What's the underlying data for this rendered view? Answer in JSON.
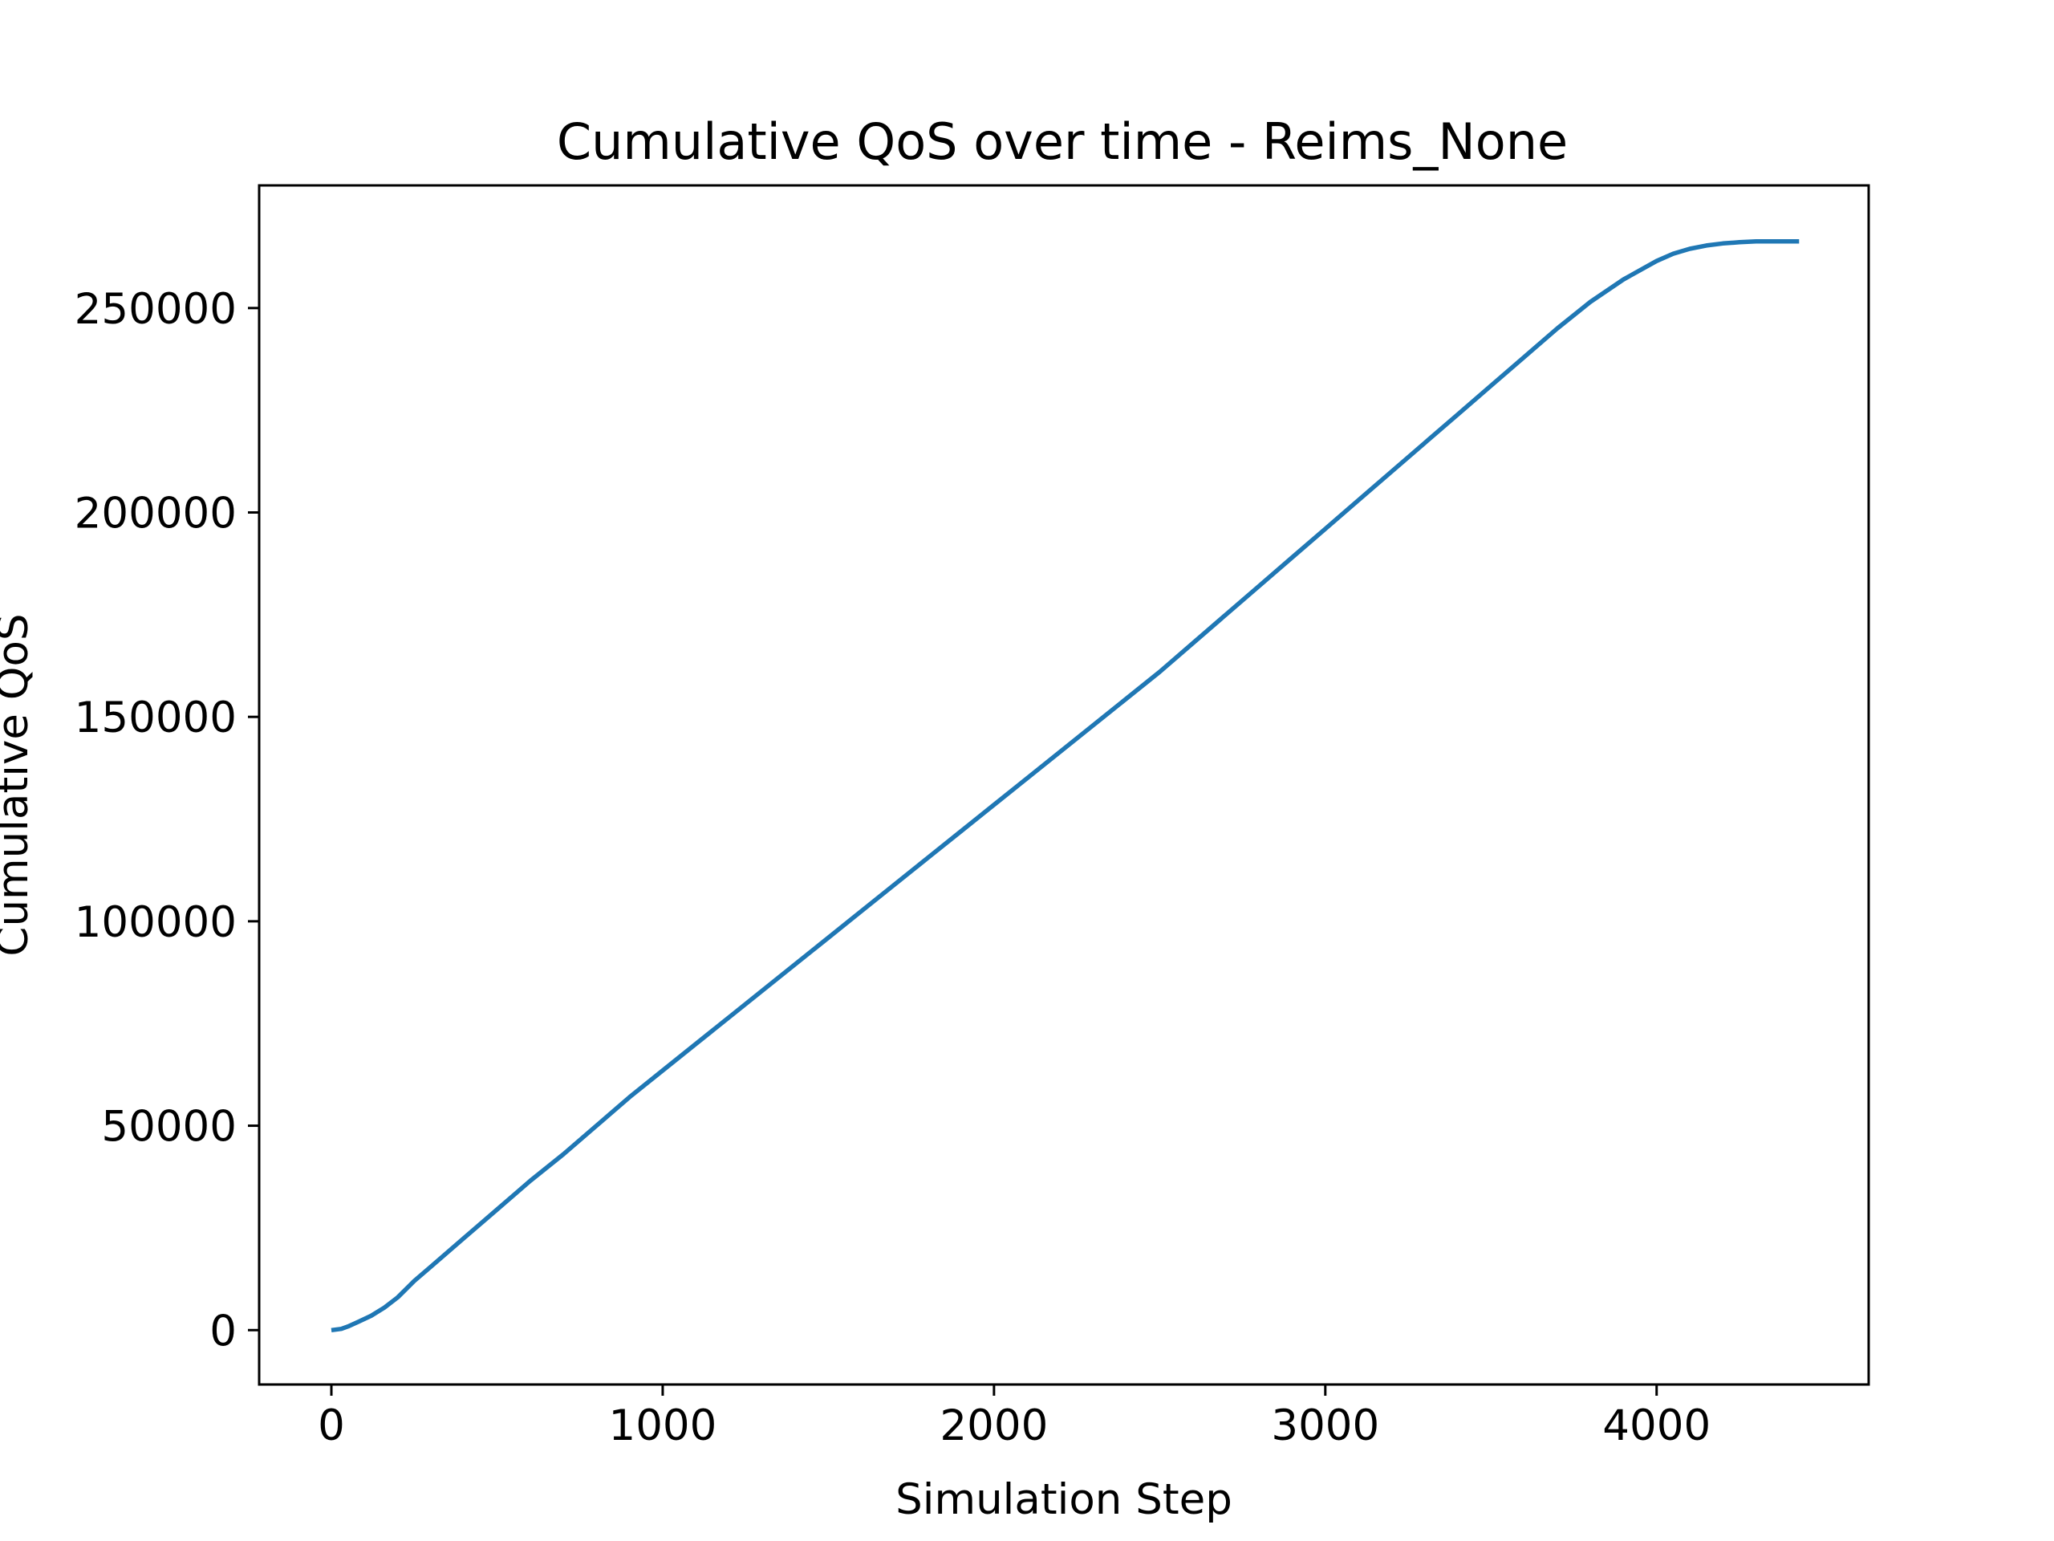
{
  "chart_data": {
    "type": "line",
    "title": "Cumulative QoS over time - Reims_None",
    "xlabel": "Simulation Step",
    "ylabel": "Cumulative QoS",
    "xlim": [
      -218,
      4640
    ],
    "ylim": [
      -13300,
      280000
    ],
    "xticks": [
      0,
      1000,
      2000,
      3000,
      4000
    ],
    "yticks": [
      0,
      50000,
      100000,
      150000,
      200000,
      250000
    ],
    "xtick_labels": [
      "0",
      "1000",
      "2000",
      "3000",
      "4000"
    ],
    "ytick_labels": [
      "0",
      "50000",
      "100000",
      "150000",
      "200000",
      "250000"
    ],
    "grid": false,
    "legend": "none",
    "series_color": "#1f77b4",
    "series": [
      {
        "x": [
          0,
          30,
          50,
          80,
          120,
          160,
          200,
          250,
          300,
          400,
          500,
          600,
          700,
          800,
          900,
          1000,
          1100,
          1200,
          1300,
          1400,
          1500,
          1600,
          1700,
          1800,
          1900,
          2000,
          2100,
          2200,
          2300,
          2400,
          2500,
          2600,
          2700,
          2800,
          2900,
          3000,
          3100,
          3200,
          3300,
          3400,
          3500,
          3600,
          3700,
          3800,
          3900,
          4000,
          4050,
          4100,
          4150,
          4200,
          4250,
          4300,
          4350,
          4430
        ],
        "y": [
          0,
          300,
          900,
          2000,
          3500,
          5500,
          8000,
          12000,
          15500,
          22500,
          29500,
          36500,
          43000,
          50000,
          57000,
          63500,
          70000,
          76500,
          83000,
          89500,
          96000,
          102500,
          109000,
          115500,
          122000,
          128500,
          135000,
          141500,
          148000,
          154500,
          161000,
          168000,
          175000,
          182000,
          189000,
          196000,
          203000,
          210000,
          217000,
          224000,
          231000,
          238000,
          245000,
          251500,
          257000,
          261500,
          263300,
          264500,
          265300,
          265800,
          266100,
          266300,
          266300,
          266300
        ]
      }
    ]
  }
}
